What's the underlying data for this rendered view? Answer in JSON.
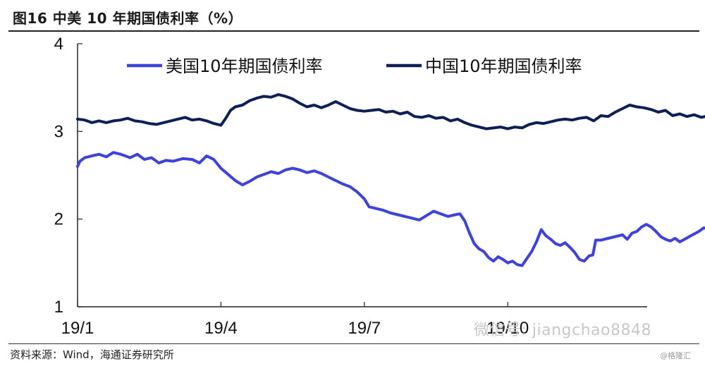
{
  "title": "图16 中美 10 年期国债利率（%）",
  "source": "资料来源：Wind，海通证券研究所",
  "watermark": "微信号: jiangchao8848",
  "watermark_small": "@格隆汇",
  "colors": {
    "us": "#3b3ff0",
    "cn": "#0b1f5c",
    "axis": "#222222"
  },
  "chart_data": {
    "type": "line",
    "title": "图16 中美 10 年期国债利率（%）",
    "xlabel": "",
    "ylabel": "",
    "ylim": [
      1,
      4
    ],
    "yticks": [
      "1",
      "2",
      "3",
      "4"
    ],
    "xticks": [
      {
        "label": "19/1",
        "x": 0
      },
      {
        "label": "19/4",
        "x": 3
      },
      {
        "label": "19/7",
        "x": 6
      },
      {
        "label": "19/10",
        "x": 9
      }
    ],
    "xlim": [
      0,
      12
    ],
    "grid": false,
    "legend": "top",
    "series": [
      {
        "name": "美国10年期国债利率",
        "key": "us",
        "points": [
          [
            0.0,
            2.6
          ],
          [
            0.05,
            2.66
          ],
          [
            0.15,
            2.7
          ],
          [
            0.3,
            2.72
          ],
          [
            0.45,
            2.74
          ],
          [
            0.6,
            2.71
          ],
          [
            0.75,
            2.76
          ],
          [
            0.9,
            2.74
          ],
          [
            1.0,
            2.72
          ],
          [
            1.1,
            2.7
          ],
          [
            1.25,
            2.74
          ],
          [
            1.4,
            2.68
          ],
          [
            1.55,
            2.7
          ],
          [
            1.7,
            2.64
          ],
          [
            1.85,
            2.67
          ],
          [
            2.0,
            2.66
          ],
          [
            2.2,
            2.69
          ],
          [
            2.4,
            2.68
          ],
          [
            2.55,
            2.64
          ],
          [
            2.7,
            2.72
          ],
          [
            2.85,
            2.68
          ],
          [
            3.0,
            2.58
          ],
          [
            3.15,
            2.51
          ],
          [
            3.3,
            2.44
          ],
          [
            3.45,
            2.39
          ],
          [
            3.6,
            2.43
          ],
          [
            3.75,
            2.48
          ],
          [
            3.9,
            2.51
          ],
          [
            4.05,
            2.54
          ],
          [
            4.2,
            2.52
          ],
          [
            4.35,
            2.56
          ],
          [
            4.5,
            2.58
          ],
          [
            4.65,
            2.56
          ],
          [
            4.8,
            2.53
          ],
          [
            4.95,
            2.55
          ],
          [
            5.1,
            2.52
          ],
          [
            5.25,
            2.48
          ],
          [
            5.4,
            2.44
          ],
          [
            5.55,
            2.4
          ],
          [
            5.7,
            2.37
          ],
          [
            5.85,
            2.31
          ],
          [
            6.0,
            2.23
          ],
          [
            6.1,
            2.14
          ],
          [
            6.25,
            2.12
          ],
          [
            6.4,
            2.1
          ],
          [
            6.55,
            2.07
          ],
          [
            6.7,
            2.05
          ],
          [
            6.85,
            2.03
          ],
          [
            7.0,
            2.01
          ],
          [
            7.15,
            1.99
          ],
          [
            7.3,
            2.04
          ],
          [
            7.45,
            2.09
          ],
          [
            7.6,
            2.06
          ],
          [
            7.75,
            2.03
          ],
          [
            7.9,
            2.05
          ],
          [
            8.0,
            2.06
          ],
          [
            8.1,
            1.98
          ],
          [
            8.2,
            1.84
          ],
          [
            8.3,
            1.72
          ],
          [
            8.4,
            1.66
          ],
          [
            8.5,
            1.63
          ],
          [
            8.6,
            1.56
          ],
          [
            8.7,
            1.52
          ],
          [
            8.8,
            1.57
          ],
          [
            8.9,
            1.54
          ],
          [
            9.0,
            1.5
          ],
          [
            9.1,
            1.52
          ],
          [
            9.2,
            1.48
          ],
          [
            9.3,
            1.47
          ],
          [
            9.4,
            1.55
          ],
          [
            9.5,
            1.63
          ],
          [
            9.6,
            1.74
          ],
          [
            9.7,
            1.88
          ],
          [
            9.8,
            1.81
          ],
          [
            9.9,
            1.77
          ],
          [
            10.0,
            1.72
          ],
          [
            10.1,
            1.7
          ],
          [
            10.2,
            1.73
          ],
          [
            10.3,
            1.68
          ],
          [
            10.4,
            1.62
          ],
          [
            10.5,
            1.54
          ],
          [
            10.6,
            1.52
          ],
          [
            10.7,
            1.58
          ],
          [
            10.78,
            1.59
          ],
          [
            10.84,
            1.76
          ],
          [
            10.95,
            1.76
          ],
          [
            11.1,
            1.78
          ],
          [
            11.25,
            1.8
          ],
          [
            11.4,
            1.82
          ],
          [
            11.5,
            1.77
          ],
          [
            11.6,
            1.84
          ],
          [
            11.7,
            1.86
          ],
          [
            11.8,
            1.91
          ],
          [
            11.9,
            1.94
          ],
          [
            12.0,
            1.91
          ],
          [
            12.1,
            1.86
          ],
          [
            12.2,
            1.8
          ],
          [
            12.3,
            1.77
          ],
          [
            12.4,
            1.75
          ],
          [
            12.5,
            1.78
          ],
          [
            12.6,
            1.74
          ],
          [
            12.7,
            1.77
          ],
          [
            12.8,
            1.8
          ],
          [
            12.9,
            1.83
          ],
          [
            13.0,
            1.86
          ],
          [
            13.1,
            1.9
          ],
          [
            13.2,
            1.89
          ],
          [
            13.3,
            1.92
          ],
          [
            13.4,
            1.9
          ],
          [
            13.5,
            1.91
          ],
          [
            13.6,
            1.88
          ]
        ]
      },
      {
        "name": "中国10年期国债利率",
        "key": "cn",
        "points": [
          [
            0.0,
            3.14
          ],
          [
            0.15,
            3.13
          ],
          [
            0.3,
            3.1
          ],
          [
            0.45,
            3.12
          ],
          [
            0.6,
            3.1
          ],
          [
            0.75,
            3.12
          ],
          [
            0.9,
            3.13
          ],
          [
            1.05,
            3.15
          ],
          [
            1.2,
            3.12
          ],
          [
            1.35,
            3.11
          ],
          [
            1.5,
            3.09
          ],
          [
            1.65,
            3.08
          ],
          [
            1.8,
            3.1
          ],
          [
            1.95,
            3.12
          ],
          [
            2.1,
            3.14
          ],
          [
            2.25,
            3.16
          ],
          [
            2.4,
            3.13
          ],
          [
            2.55,
            3.14
          ],
          [
            2.7,
            3.12
          ],
          [
            2.85,
            3.09
          ],
          [
            3.0,
            3.07
          ],
          [
            3.1,
            3.15
          ],
          [
            3.2,
            3.24
          ],
          [
            3.3,
            3.28
          ],
          [
            3.45,
            3.3
          ],
          [
            3.6,
            3.35
          ],
          [
            3.75,
            3.38
          ],
          [
            3.9,
            3.4
          ],
          [
            4.05,
            3.39
          ],
          [
            4.2,
            3.42
          ],
          [
            4.35,
            3.4
          ],
          [
            4.5,
            3.37
          ],
          [
            4.65,
            3.32
          ],
          [
            4.8,
            3.28
          ],
          [
            4.95,
            3.3
          ],
          [
            5.1,
            3.27
          ],
          [
            5.25,
            3.3
          ],
          [
            5.4,
            3.34
          ],
          [
            5.55,
            3.3
          ],
          [
            5.7,
            3.26
          ],
          [
            5.85,
            3.24
          ],
          [
            6.0,
            3.23
          ],
          [
            6.15,
            3.24
          ],
          [
            6.3,
            3.25
          ],
          [
            6.45,
            3.22
          ],
          [
            6.6,
            3.23
          ],
          [
            6.75,
            3.2
          ],
          [
            6.9,
            3.22
          ],
          [
            7.05,
            3.17
          ],
          [
            7.2,
            3.16
          ],
          [
            7.35,
            3.18
          ],
          [
            7.5,
            3.15
          ],
          [
            7.65,
            3.16
          ],
          [
            7.8,
            3.12
          ],
          [
            7.95,
            3.14
          ],
          [
            8.1,
            3.1
          ],
          [
            8.25,
            3.07
          ],
          [
            8.4,
            3.05
          ],
          [
            8.55,
            3.03
          ],
          [
            8.7,
            3.04
          ],
          [
            8.85,
            3.05
          ],
          [
            9.0,
            3.03
          ],
          [
            9.15,
            3.05
          ],
          [
            9.3,
            3.04
          ],
          [
            9.45,
            3.08
          ],
          [
            9.6,
            3.1
          ],
          [
            9.75,
            3.09
          ],
          [
            9.9,
            3.11
          ],
          [
            10.05,
            3.13
          ],
          [
            10.2,
            3.14
          ],
          [
            10.35,
            3.13
          ],
          [
            10.5,
            3.15
          ],
          [
            10.65,
            3.16
          ],
          [
            10.8,
            3.12
          ],
          [
            10.95,
            3.18
          ],
          [
            11.1,
            3.17
          ],
          [
            11.25,
            3.22
          ],
          [
            11.4,
            3.26
          ],
          [
            11.55,
            3.3
          ],
          [
            11.7,
            3.28
          ],
          [
            11.85,
            3.27
          ],
          [
            12.0,
            3.25
          ],
          [
            12.15,
            3.22
          ],
          [
            12.3,
            3.24
          ],
          [
            12.45,
            3.18
          ],
          [
            12.6,
            3.2
          ],
          [
            12.75,
            3.17
          ],
          [
            12.9,
            3.19
          ],
          [
            13.05,
            3.16
          ],
          [
            13.2,
            3.18
          ],
          [
            13.35,
            3.2
          ],
          [
            13.5,
            3.15
          ],
          [
            13.6,
            3.13
          ]
        ]
      }
    ]
  }
}
